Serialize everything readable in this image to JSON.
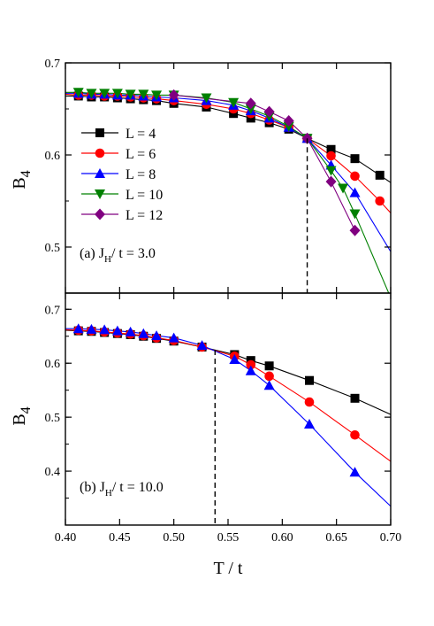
{
  "chart_data": [
    {
      "type": "line",
      "panel_label_parts": [
        "(a) J",
        "H",
        "/ t = 3.0"
      ],
      "ylabel": "B",
      "ylabel_sub": "4",
      "xlim": [
        0.4,
        0.7
      ],
      "ylim": [
        0.45,
        0.7
      ],
      "yticks": [
        0.5,
        0.6,
        0.7
      ],
      "critical_T": 0.623,
      "legend_position": "left",
      "series": [
        {
          "name": "L = 4",
          "color": "#000000",
          "marker": "square",
          "x": [
            0.4,
            0.412,
            0.424,
            0.436,
            0.448,
            0.46,
            0.472,
            0.484,
            0.5,
            0.53,
            0.555,
            0.571,
            0.588,
            0.606,
            0.623,
            0.645,
            0.667,
            0.69,
            0.7
          ],
          "y": [
            0.664,
            0.664,
            0.663,
            0.663,
            0.662,
            0.661,
            0.66,
            0.659,
            0.656,
            0.652,
            0.645,
            0.64,
            0.635,
            0.628,
            0.618,
            0.606,
            0.596,
            0.578,
            0.57
          ]
        },
        {
          "name": "L = 6",
          "color": "#ff0000",
          "marker": "circle",
          "x": [
            0.4,
            0.412,
            0.424,
            0.436,
            0.448,
            0.46,
            0.472,
            0.484,
            0.5,
            0.53,
            0.555,
            0.571,
            0.588,
            0.606,
            0.623,
            0.645,
            0.667,
            0.69,
            0.7
          ],
          "y": [
            0.666,
            0.665,
            0.665,
            0.664,
            0.664,
            0.663,
            0.662,
            0.661,
            0.659,
            0.655,
            0.65,
            0.645,
            0.638,
            0.63,
            0.618,
            0.599,
            0.577,
            0.55,
            0.537
          ]
        },
        {
          "name": "L = 8",
          "color": "#0000ff",
          "marker": "triangle-up",
          "x": [
            0.4,
            0.412,
            0.424,
            0.436,
            0.448,
            0.46,
            0.472,
            0.484,
            0.5,
            0.53,
            0.555,
            0.571,
            0.588,
            0.606,
            0.623,
            0.645,
            0.667,
            0.7
          ],
          "y": [
            0.667,
            0.667,
            0.666,
            0.666,
            0.665,
            0.665,
            0.664,
            0.663,
            0.662,
            0.659,
            0.654,
            0.648,
            0.64,
            0.63,
            0.618,
            0.589,
            0.559,
            0.495
          ]
        },
        {
          "name": "L = 10",
          "color": "#008000",
          "marker": "triangle-down",
          "x": [
            0.4,
            0.412,
            0.424,
            0.436,
            0.448,
            0.46,
            0.472,
            0.484,
            0.5,
            0.53,
            0.555,
            0.571,
            0.588,
            0.606,
            0.623,
            0.645,
            0.656,
            0.667,
            0.7
          ],
          "y": [
            0.668,
            0.668,
            0.667,
            0.667,
            0.667,
            0.666,
            0.666,
            0.665,
            0.665,
            0.662,
            0.657,
            0.65,
            0.642,
            0.631,
            0.618,
            0.583,
            0.564,
            0.536,
            0.445
          ]
        },
        {
          "name": "L = 12",
          "color": "#800080",
          "marker": "diamond",
          "x": [
            0.5,
            0.571,
            0.588,
            0.606,
            0.623,
            0.645,
            0.667
          ],
          "y": [
            0.665,
            0.656,
            0.647,
            0.637,
            0.618,
            0.571,
            0.518
          ]
        }
      ]
    },
    {
      "type": "line",
      "panel_label_parts": [
        "(b) J",
        "H",
        "/ t = 10.0"
      ],
      "ylabel": "B",
      "ylabel_sub": "4",
      "xlabel": "T / t",
      "xlim": [
        0.4,
        0.7
      ],
      "ylim": [
        0.3,
        0.73
      ],
      "yticks": [
        0.4,
        0.5,
        0.6,
        0.7
      ],
      "xticks": [
        "0.40",
        "0.45",
        "0.50",
        "0.55",
        "0.60",
        "0.65",
        "0.70"
      ],
      "critical_T": 0.538,
      "series": [
        {
          "name": "L = 4",
          "color": "#000000",
          "marker": "square",
          "x": [
            0.4,
            0.412,
            0.424,
            0.436,
            0.448,
            0.46,
            0.472,
            0.484,
            0.5,
            0.526,
            0.556,
            0.571,
            0.588,
            0.625,
            0.667,
            0.7
          ],
          "y": [
            0.661,
            0.66,
            0.659,
            0.657,
            0.655,
            0.653,
            0.65,
            0.646,
            0.641,
            0.63,
            0.616,
            0.605,
            0.595,
            0.568,
            0.535,
            0.505
          ]
        },
        {
          "name": "L = 6",
          "color": "#ff0000",
          "marker": "circle",
          "x": [
            0.4,
            0.412,
            0.424,
            0.436,
            0.448,
            0.46,
            0.472,
            0.484,
            0.5,
            0.526,
            0.556,
            0.571,
            0.588,
            0.625,
            0.667,
            0.7
          ],
          "y": [
            0.662,
            0.661,
            0.66,
            0.658,
            0.656,
            0.654,
            0.651,
            0.647,
            0.642,
            0.63,
            0.613,
            0.597,
            0.576,
            0.528,
            0.467,
            0.418
          ]
        },
        {
          "name": "L = 8",
          "color": "#0000ff",
          "marker": "triangle-up",
          "x": [
            0.4,
            0.412,
            0.424,
            0.436,
            0.448,
            0.46,
            0.472,
            0.484,
            0.5,
            0.526,
            0.556,
            0.571,
            0.588,
            0.625,
            0.667,
            0.7
          ],
          "y": [
            0.664,
            0.664,
            0.663,
            0.662,
            0.66,
            0.658,
            0.655,
            0.651,
            0.647,
            0.633,
            0.607,
            0.586,
            0.559,
            0.487,
            0.398,
            0.335
          ]
        }
      ]
    }
  ]
}
